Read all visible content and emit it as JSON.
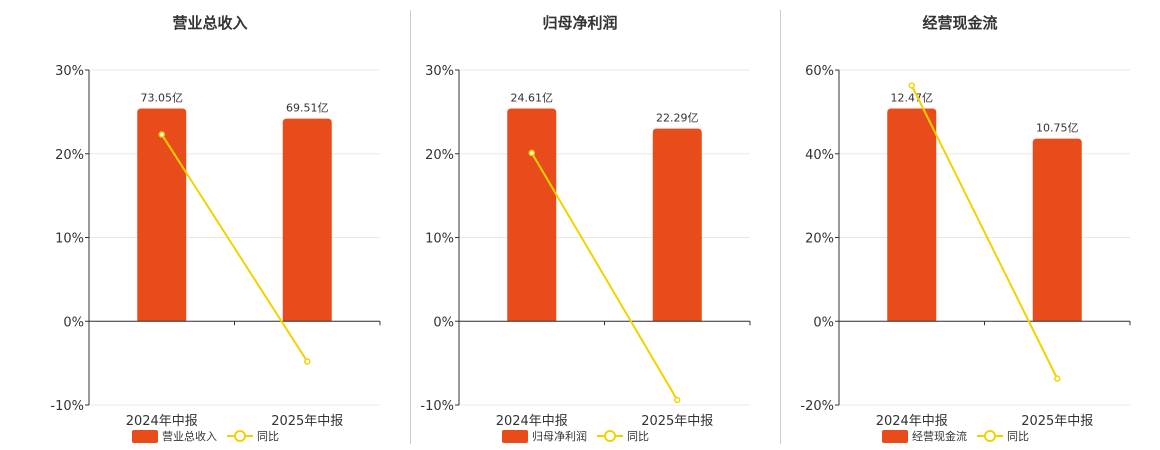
{
  "colors": {
    "bar": "#E84C1A",
    "line": "#F2D200",
    "grid": "#e8e8e8",
    "axis": "#333333"
  },
  "chart_data": [
    {
      "type": "bar",
      "title": "营业总收入",
      "categories": [
        "2024年中报",
        "2025年中报"
      ],
      "series": [
        {
          "name": "营业总收入",
          "type": "bar",
          "axis": "left",
          "values": [
            25.4,
            24.2
          ],
          "labels": [
            "73.05亿",
            "69.51亿"
          ]
        },
        {
          "name": "同比",
          "type": "line",
          "axis": "left",
          "values": [
            22.3,
            -4.8
          ]
        }
      ],
      "ylim": [
        -10,
        30
      ],
      "yticks": [
        "30%",
        "20%",
        "10%",
        "0%",
        "-10%"
      ],
      "legend": "bottom"
    },
    {
      "type": "bar",
      "title": "归母净利润",
      "categories": [
        "2024年中报",
        "2025年中报"
      ],
      "series": [
        {
          "name": "归母净利润",
          "type": "bar",
          "axis": "left",
          "values": [
            25.4,
            23.0
          ],
          "labels": [
            "24.61亿",
            "22.29亿"
          ]
        },
        {
          "name": "同比",
          "type": "line",
          "axis": "left",
          "values": [
            20.1,
            -9.4
          ]
        }
      ],
      "ylim": [
        -10,
        30
      ],
      "yticks": [
        "30%",
        "20%",
        "10%",
        "0%",
        "-10%"
      ],
      "legend": "bottom"
    },
    {
      "type": "bar",
      "title": "经营现金流",
      "categories": [
        "2024年中报",
        "2025年中报"
      ],
      "series": [
        {
          "name": "经营现金流",
          "type": "bar",
          "axis": "left",
          "values": [
            50.8,
            43.6
          ],
          "labels": [
            "12.47亿",
            "10.75亿"
          ]
        },
        {
          "name": "同比",
          "type": "line",
          "axis": "left",
          "values": [
            56.3,
            -13.7
          ]
        }
      ],
      "ylim": [
        -20,
        60
      ],
      "yticks": [
        "60%",
        "40%",
        "20%",
        "0%",
        "-20%"
      ],
      "legend": "bottom"
    }
  ]
}
